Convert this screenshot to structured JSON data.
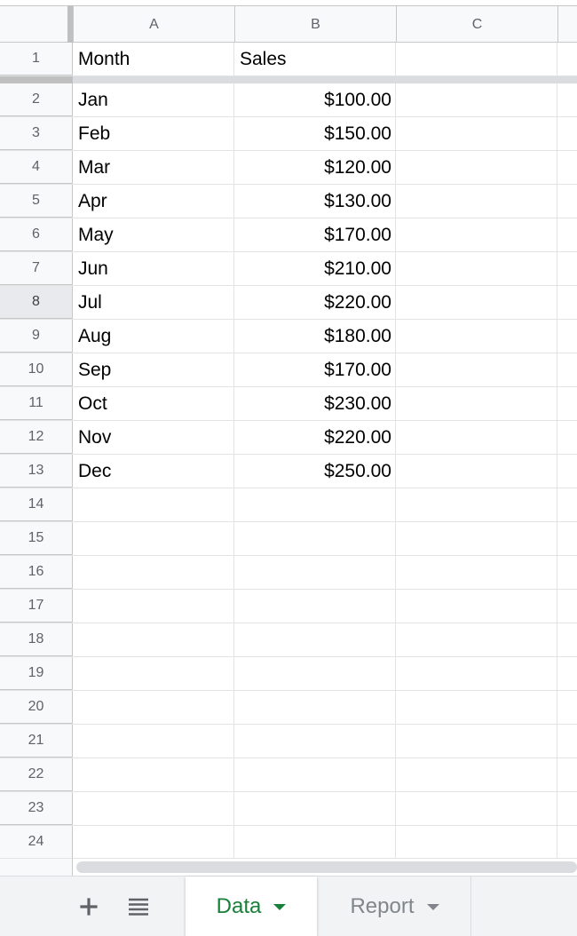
{
  "columns": [
    "A",
    "B",
    "C"
  ],
  "header_row": {
    "row": "1",
    "a": "Month",
    "b": "Sales",
    "c": ""
  },
  "rows": [
    {
      "row": "2",
      "a": "Jan",
      "b": "$100.00"
    },
    {
      "row": "3",
      "a": "Feb",
      "b": "$150.00"
    },
    {
      "row": "4",
      "a": "Mar",
      "b": "$120.00"
    },
    {
      "row": "5",
      "a": "Apr",
      "b": "$130.00"
    },
    {
      "row": "6",
      "a": "May",
      "b": "$170.00"
    },
    {
      "row": "7",
      "a": "Jun",
      "b": "$210.00"
    },
    {
      "row": "8",
      "a": "Jul",
      "b": "$220.00"
    },
    {
      "row": "9",
      "a": "Aug",
      "b": "$180.00"
    },
    {
      "row": "10",
      "a": "Sep",
      "b": "$170.00"
    },
    {
      "row": "11",
      "a": "Oct",
      "b": "$230.00"
    },
    {
      "row": "12",
      "a": "Nov",
      "b": "$220.00"
    },
    {
      "row": "13",
      "a": "Dec",
      "b": "$250.00"
    },
    {
      "row": "14",
      "a": "",
      "b": ""
    },
    {
      "row": "15",
      "a": "",
      "b": ""
    },
    {
      "row": "16",
      "a": "",
      "b": ""
    },
    {
      "row": "17",
      "a": "",
      "b": ""
    },
    {
      "row": "18",
      "a": "",
      "b": ""
    },
    {
      "row": "19",
      "a": "",
      "b": ""
    },
    {
      "row": "20",
      "a": "",
      "b": ""
    },
    {
      "row": "21",
      "a": "",
      "b": ""
    },
    {
      "row": "22",
      "a": "",
      "b": ""
    },
    {
      "row": "23",
      "a": "",
      "b": ""
    },
    {
      "row": "24",
      "a": "",
      "b": ""
    }
  ],
  "selected_row": "8",
  "tabbar": {
    "add_icon": "plus-icon",
    "list_icon": "all-sheets-icon",
    "tabs": [
      {
        "label": "Data",
        "active": true
      },
      {
        "label": "Report",
        "active": false
      }
    ]
  },
  "colors": {
    "active_tab": "#188038",
    "inactive_tab": "#80868b",
    "header_bg": "#f8f9fa",
    "gridline": "#e2e3e3"
  }
}
